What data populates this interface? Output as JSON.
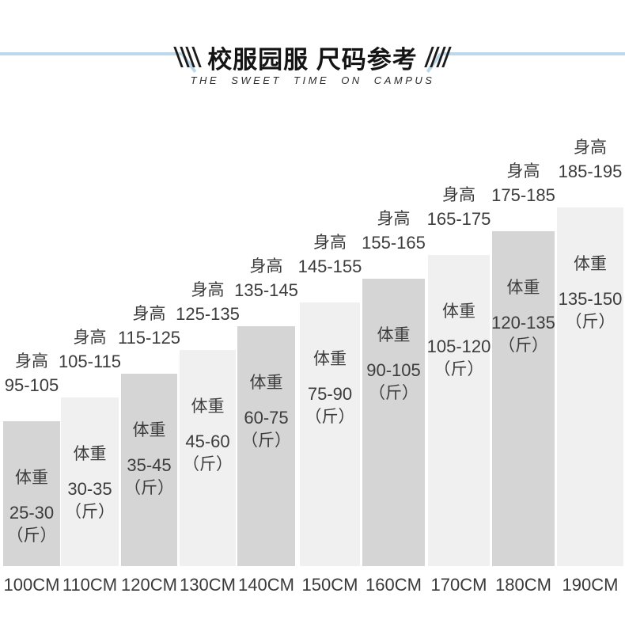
{
  "header": {
    "title": "校服园服 尺码参考",
    "subtitle": "THE SWEET TIME ON CAMPUS"
  },
  "labels": {
    "height_caption": "身高",
    "weight_caption": "体重",
    "weight_unit": "（斤）"
  },
  "chart_data": {
    "type": "bar",
    "title": "校服园服 尺码参考",
    "subtitle": "THE SWEET TIME ON CAMPUS",
    "categories": [
      "100CM",
      "110CM",
      "120CM",
      "130CM",
      "140CM",
      "150CM",
      "160CM",
      "170CM",
      "180CM",
      "190CM"
    ],
    "series": [
      {
        "name": "身高",
        "values": [
          "95-105",
          "105-115",
          "115-125",
          "125-135",
          "135-145",
          "145-155",
          "155-165",
          "165-175",
          "175-185",
          "185-195"
        ],
        "unit": "CM",
        "numeric_ranges": [
          [
            95,
            105
          ],
          [
            105,
            115
          ],
          [
            115,
            125
          ],
          [
            125,
            135
          ],
          [
            135,
            145
          ],
          [
            145,
            155
          ],
          [
            155,
            165
          ],
          [
            165,
            175
          ],
          [
            175,
            185
          ],
          [
            185,
            195
          ]
        ]
      },
      {
        "name": "体重",
        "values": [
          "25-30",
          "30-35",
          "35-45",
          "45-60",
          "60-75",
          "75-90",
          "90-105",
          "105-120",
          "120-135",
          "135-150"
        ],
        "unit": "斤",
        "numeric_ranges": [
          [
            25,
            30
          ],
          [
            30,
            35
          ],
          [
            35,
            45
          ],
          [
            45,
            60
          ],
          [
            60,
            75
          ],
          [
            75,
            90
          ],
          [
            90,
            105
          ],
          [
            105,
            120
          ],
          [
            120,
            135
          ],
          [
            135,
            150
          ]
        ]
      }
    ],
    "layout_hints": {
      "bar_order": "ascending staircase, left to right",
      "grid": false,
      "legend": false
    },
    "colors": {
      "bar_dark": "#d5d5d5",
      "bar_light": "#f0f0f0",
      "accent_line": "#bcd8ea",
      "text": "#3c3c3c"
    }
  }
}
